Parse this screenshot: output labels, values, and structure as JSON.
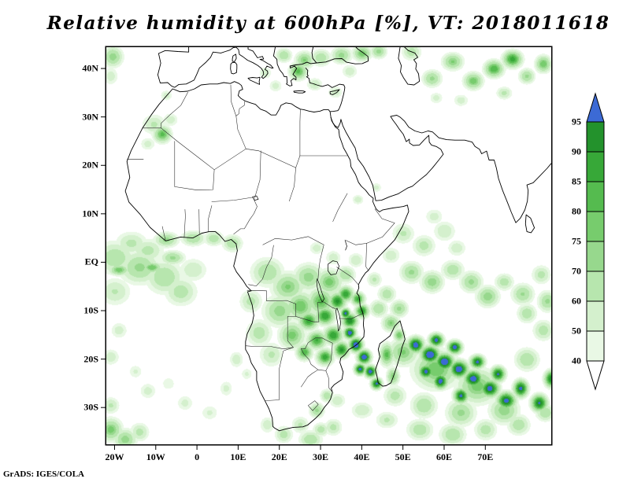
{
  "chart_data": {
    "type": "heatmap",
    "title": "Relative humidity at 600hPa [%], VT: 2018011618",
    "units": "%",
    "attribution": "GrADS: IGES/COLA",
    "axes": {
      "lon_range": [
        -22,
        86
      ],
      "lat_range": [
        -37.6,
        44.4
      ],
      "x_tick_labels": [
        "20W",
        "10W",
        "0",
        "10E",
        "20E",
        "30E",
        "40E",
        "50E",
        "60E",
        "70E"
      ],
      "x_tick_lons": [
        -20,
        -10,
        0,
        10,
        20,
        30,
        40,
        50,
        60,
        70
      ],
      "y_tick_labels": [
        "40N",
        "30N",
        "20N",
        "10N",
        "EQ",
        "10S",
        "20S",
        "30S"
      ],
      "y_tick_lats": [
        40,
        30,
        20,
        10,
        0,
        -10,
        -20,
        -30
      ]
    },
    "colorbar": {
      "tick_labels": [
        "95",
        "90",
        "85",
        "80",
        "75",
        "70",
        "60",
        "50",
        "40"
      ],
      "levels_low_to_high": [
        40,
        50,
        60,
        70,
        75,
        80,
        85,
        90,
        95
      ],
      "colors_low_to_high": [
        "#e9f8e5",
        "#d4f0cd",
        "#b7e6ae",
        "#97d88d",
        "#77cc6d",
        "#55bb4f",
        "#37a838",
        "#23922c"
      ],
      "over_color": "#3c6ad5",
      "under_color": "#ffffff"
    },
    "field_blobs_lon_lat_slon_slat_rh": [
      [
        -20,
        1,
        5,
        3.5,
        68
      ],
      [
        -14,
        -1,
        5,
        3.5,
        72
      ],
      [
        -8,
        -3,
        4.5,
        3.5,
        70
      ],
      [
        -16,
        4,
        4,
        2.5,
        63
      ],
      [
        -20,
        -6,
        4,
        3,
        61
      ],
      [
        -12,
        2.5,
        4,
        2.5,
        64
      ],
      [
        -4,
        -6,
        4,
        3,
        66
      ],
      [
        -1,
        -1.5,
        3.5,
        2.5,
        60
      ],
      [
        -19,
        -1.5,
        2.5,
        1.2,
        79
      ],
      [
        -11,
        -1,
        2.5,
        1.2,
        80
      ],
      [
        -6,
        1,
        3,
        1.5,
        72
      ],
      [
        -7.5,
        4.7,
        3,
        1.6,
        73
      ],
      [
        -1,
        5,
        3,
        1.6,
        70
      ],
      [
        4,
        5,
        2.5,
        1.6,
        67
      ],
      [
        8.5,
        4,
        2.5,
        1.8,
        69
      ],
      [
        -8.5,
        26.5,
        2.2,
        1.8,
        82
      ],
      [
        -10.5,
        28.5,
        3,
        2.2,
        62
      ],
      [
        -6.5,
        29.5,
        2,
        1.5,
        57
      ],
      [
        -12,
        24.5,
        2,
        1.5,
        55
      ],
      [
        -20.5,
        42.5,
        2.5,
        2.2,
        74
      ],
      [
        -21,
        38.5,
        2,
        2,
        56
      ],
      [
        -7.5,
        34.5,
        1.6,
        1.2,
        56
      ],
      [
        24.5,
        39.5,
        2.2,
        1.8,
        82
      ],
      [
        26,
        41.8,
        2.3,
        1.8,
        76
      ],
      [
        21,
        42.8,
        2,
        1.5,
        70
      ],
      [
        30,
        42.3,
        2.5,
        1.8,
        68
      ],
      [
        35,
        42.8,
        2.5,
        1.8,
        73
      ],
      [
        40,
        43.2,
        2.3,
        1.6,
        79
      ],
      [
        44,
        43.6,
        2,
        1.5,
        73
      ],
      [
        28.5,
        36.8,
        2,
        1.4,
        61
      ],
      [
        33.5,
        35.2,
        2,
        1.4,
        56
      ],
      [
        16.5,
        39.2,
        1.6,
        1.3,
        58
      ],
      [
        19,
        36.5,
        1.8,
        1.4,
        55
      ],
      [
        37,
        39.5,
        2,
        1.5,
        58
      ],
      [
        52,
        43.5,
        2.4,
        1.8,
        66
      ],
      [
        57,
        38,
        2.4,
        1.8,
        72
      ],
      [
        62,
        41.5,
        2.6,
        1.8,
        76
      ],
      [
        67,
        37.5,
        2.4,
        1.8,
        79
      ],
      [
        72,
        40,
        2.4,
        1.8,
        85
      ],
      [
        76.5,
        42,
        2.4,
        1.8,
        88
      ],
      [
        80,
        38.5,
        2,
        1.6,
        72
      ],
      [
        74.5,
        35,
        2,
        1.4,
        63
      ],
      [
        64,
        33.5,
        2,
        1.4,
        56
      ],
      [
        84,
        41,
        2,
        1.8,
        80
      ],
      [
        58,
        34,
        1.8,
        1.3,
        55
      ],
      [
        39,
        13,
        1.5,
        1.1,
        58
      ],
      [
        43.5,
        15.5,
        1.4,
        1.1,
        54
      ],
      [
        50,
        6,
        2.8,
        2.2,
        62
      ],
      [
        55,
        3.5,
        2.8,
        2.2,
        65
      ],
      [
        60,
        6.5,
        2.8,
        2.2,
        60
      ],
      [
        47,
        1.5,
        2.4,
        1.8,
        58
      ],
      [
        57.5,
        9.5,
        2.4,
        1.8,
        55
      ],
      [
        63,
        3,
        2.4,
        1.8,
        58
      ],
      [
        52,
        -2,
        2.8,
        2.2,
        72
      ],
      [
        57,
        -4,
        2.8,
        2.2,
        75
      ],
      [
        62,
        -1.5,
        2.8,
        2,
        68
      ],
      [
        66.5,
        -4,
        2.8,
        2.2,
        72
      ],
      [
        70.5,
        -7,
        2.8,
        2.2,
        75
      ],
      [
        74.5,
        -4,
        2.4,
        1.8,
        66
      ],
      [
        79,
        -6.5,
        2.8,
        2.2,
        71
      ],
      [
        83.5,
        -2.5,
        2.4,
        2,
        64
      ],
      [
        85,
        -8,
        2.4,
        2.2,
        72
      ],
      [
        80,
        -10.5,
        2.4,
        2,
        68
      ],
      [
        17,
        -2,
        4,
        3,
        70
      ],
      [
        22,
        -5,
        4,
        3,
        76
      ],
      [
        27,
        -3,
        3.6,
        2.8,
        74
      ],
      [
        32,
        -4,
        3.2,
        2.6,
        78
      ],
      [
        20,
        -10,
        4,
        3.2,
        74
      ],
      [
        15,
        -14.5,
        3.2,
        2.8,
        66
      ],
      [
        25,
        -9,
        3.6,
        3,
        80
      ],
      [
        30,
        -8,
        3.2,
        2.8,
        82
      ],
      [
        23,
        -15,
        3.2,
        2.8,
        78
      ],
      [
        18,
        -19,
        3,
        2.6,
        62
      ],
      [
        13,
        -8,
        2.8,
        2.4,
        64
      ],
      [
        36,
        -2.5,
        2.4,
        1.8,
        70
      ],
      [
        38.5,
        0.5,
        2,
        1.6,
        60
      ],
      [
        33,
        1,
        2,
        1.6,
        58
      ],
      [
        29,
        3,
        2,
        1.5,
        56
      ],
      [
        27,
        -12,
        2.4,
        1.9,
        88
      ],
      [
        31,
        -11,
        2.4,
        1.9,
        90
      ],
      [
        34,
        -8,
        2.1,
        1.8,
        92
      ],
      [
        36,
        -6.5,
        1.9,
        1.6,
        90
      ],
      [
        29,
        -16,
        2.4,
        1.9,
        86
      ],
      [
        33,
        -15,
        2.3,
        1.9,
        90
      ],
      [
        26,
        -18.5,
        2,
        1.7,
        84
      ],
      [
        31,
        -19.5,
        2.1,
        1.7,
        88
      ],
      [
        35,
        -18,
        1.9,
        1.7,
        92
      ],
      [
        37,
        -12,
        1.9,
        1.6,
        94
      ],
      [
        39,
        -7.5,
        1.7,
        1.4,
        87
      ],
      [
        40,
        -10,
        1.7,
        1.4,
        91
      ],
      [
        37,
        -14.5,
        1.5,
        1.3,
        100
      ],
      [
        38.5,
        -17,
        1.7,
        1.5,
        102
      ],
      [
        40.5,
        -19.5,
        1.7,
        1.5,
        101
      ],
      [
        42,
        -22.5,
        1.5,
        1.3,
        99
      ],
      [
        36,
        -10.5,
        1.2,
        1.1,
        98
      ],
      [
        39.5,
        -22,
        1.4,
        1.2,
        98
      ],
      [
        43.5,
        -25,
        1.4,
        1.2,
        97
      ],
      [
        46,
        -19,
        1.8,
        2.4,
        82
      ],
      [
        47.5,
        -23.5,
        1.6,
        1.9,
        76
      ],
      [
        49,
        -15,
        1.4,
        1.4,
        80
      ],
      [
        53,
        -17,
        2,
        1.7,
        100
      ],
      [
        56.5,
        -19,
        2.3,
        1.8,
        103
      ],
      [
        60,
        -20.5,
        2.3,
        1.8,
        102
      ],
      [
        63.5,
        -22,
        2.3,
        1.8,
        101
      ],
      [
        67,
        -24,
        2.3,
        1.8,
        100
      ],
      [
        71,
        -26,
        2.3,
        1.8,
        99
      ],
      [
        75,
        -28.5,
        2.3,
        1.8,
        98
      ],
      [
        59,
        -24.5,
        1.8,
        1.6,
        99
      ],
      [
        55.5,
        -22.5,
        1.8,
        1.5,
        98
      ],
      [
        64,
        -27.5,
        1.8,
        1.6,
        97
      ],
      [
        58,
        -16,
        1.8,
        1.4,
        98
      ],
      [
        62.5,
        -17.5,
        1.8,
        1.4,
        99
      ],
      [
        68,
        -20.5,
        1.8,
        1.4,
        97
      ],
      [
        73,
        -23,
        1.8,
        1.6,
        96
      ],
      [
        78.5,
        -26,
        1.8,
        1.8,
        97
      ],
      [
        83,
        -29,
        2,
        1.8,
        96
      ],
      [
        86,
        -24,
        1.8,
        1.8,
        95
      ],
      [
        58,
        -22,
        5.5,
        4,
        80
      ],
      [
        68,
        -25.5,
        5,
        3.6,
        78
      ],
      [
        50,
        -18.5,
        3.6,
        2.8,
        76
      ],
      [
        74.5,
        -30.5,
        3.6,
        2.8,
        75
      ],
      [
        64,
        -31,
        3.6,
        2.8,
        72
      ],
      [
        55,
        -29.5,
        3.2,
        2.6,
        70
      ],
      [
        48,
        -27.5,
        2.8,
        2.2,
        65
      ],
      [
        80,
        -20,
        3,
        2.4,
        70
      ],
      [
        84,
        -14,
        2.6,
        2.2,
        66
      ],
      [
        40,
        -30.5,
        2.8,
        1.8,
        60
      ],
      [
        46,
        -32.5,
        2.8,
        1.8,
        62
      ],
      [
        54,
        -34.5,
        3.2,
        2.2,
        68
      ],
      [
        62,
        -35.5,
        3.2,
        2.2,
        70
      ],
      [
        70,
        -34.5,
        2.8,
        2.2,
        66
      ],
      [
        78,
        -33.5,
        2.8,
        2.2,
        68
      ],
      [
        84.5,
        -31,
        2.4,
        1.8,
        70
      ],
      [
        34,
        -28.5,
        2.2,
        1.6,
        58
      ],
      [
        29,
        -30.5,
        1.9,
        1.6,
        72
      ],
      [
        31.5,
        -27.5,
        1.7,
        1.4,
        68
      ],
      [
        25,
        -33.5,
        2.2,
        1.8,
        62
      ],
      [
        21,
        -35.5,
        2.2,
        1.8,
        66
      ],
      [
        27.5,
        -36.5,
        2.8,
        1.8,
        70
      ],
      [
        33,
        -34,
        2.2,
        1.8,
        64
      ],
      [
        17,
        -33.5,
        1.9,
        1.8,
        58
      ],
      [
        30,
        -34.5,
        2,
        1.5,
        66
      ],
      [
        -21,
        -34.5,
        2.8,
        2.4,
        78
      ],
      [
        -17.5,
        -36.5,
        2.8,
        2.2,
        74
      ],
      [
        -21,
        -29.5,
        2.2,
        1.8,
        62
      ],
      [
        -14,
        -35,
        2.4,
        2,
        64
      ],
      [
        -19,
        -14,
        2.2,
        1.8,
        56
      ],
      [
        -21,
        -19.5,
        2.2,
        1.8,
        58
      ],
      [
        -15,
        -22.5,
        1.9,
        1.6,
        52
      ],
      [
        -12,
        -26.5,
        2.2,
        1.8,
        55
      ],
      [
        -7,
        -25,
        1.9,
        1.6,
        50
      ],
      [
        -3,
        -29,
        2.2,
        1.8,
        54
      ],
      [
        3,
        -31,
        2.4,
        1.8,
        52
      ],
      [
        9.5,
        -20,
        1.8,
        1.8,
        58
      ],
      [
        7,
        -26,
        1.8,
        1.8,
        54
      ],
      [
        12,
        -23,
        1.6,
        1.4,
        52
      ],
      [
        43,
        -3.5,
        1.9,
        1.6,
        62
      ],
      [
        46,
        -6.5,
        2.2,
        1.8,
        68
      ],
      [
        49,
        -9.5,
        2.2,
        1.8,
        72
      ],
      [
        44,
        -9.5,
        2.2,
        1.8,
        70
      ],
      [
        47,
        -12.5,
        2.2,
        1.8,
        76
      ]
    ]
  }
}
